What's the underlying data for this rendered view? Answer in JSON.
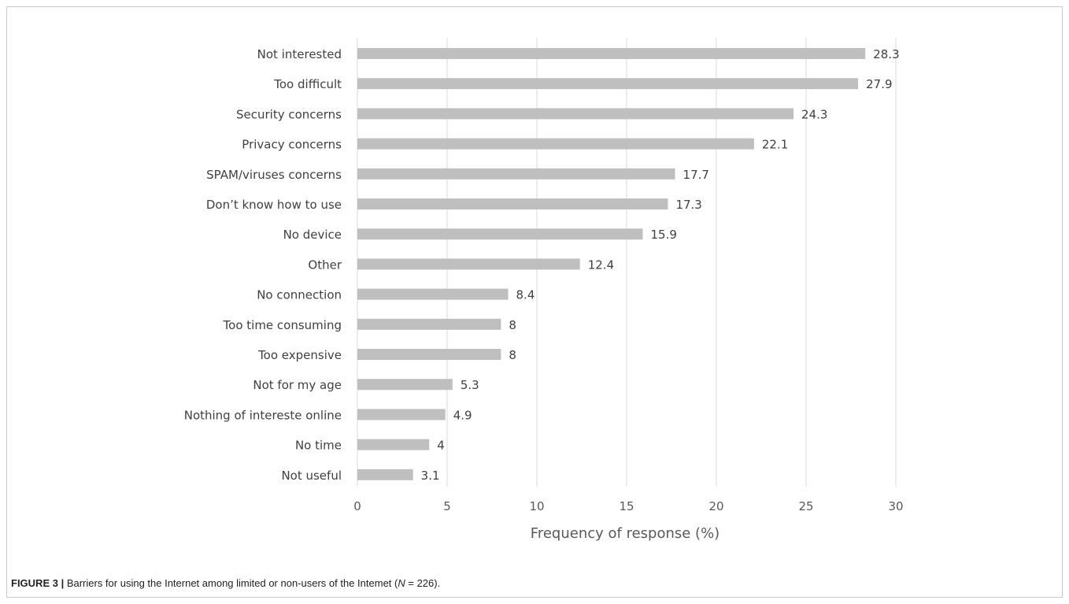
{
  "chart_data": {
    "type": "bar",
    "orientation": "horizontal",
    "categories": [
      "Not interested",
      "Too difficult",
      "Security concerns",
      "Privacy concerns",
      "SPAM/viruses concerns",
      "Don’t know how to use",
      "No device",
      "Other",
      "No connection",
      "Too time consuming",
      "Too expensive",
      "Not for my age",
      "Nothing of intereste online",
      "No time",
      "Not useful"
    ],
    "values": [
      28.3,
      27.9,
      24.3,
      22.1,
      17.7,
      17.3,
      15.9,
      12.4,
      8.4,
      8,
      8,
      5.3,
      4.9,
      4,
      3.1
    ],
    "xlabel": "Frequency of response (%)",
    "xlim": [
      0,
      30
    ],
    "xticks": [
      0,
      5,
      10,
      15,
      20,
      25,
      30
    ],
    "grid": "vertical",
    "bar_color": "#bfbfbf",
    "gridline_color": "#d9d9d9"
  },
  "caption": {
    "lead": "FIGURE 3 |",
    "text_before_n": " Barriers for using the Internet among limited or non-users of the Intemet (",
    "n_symbol": "N",
    "text_after_n": " = 226)."
  }
}
